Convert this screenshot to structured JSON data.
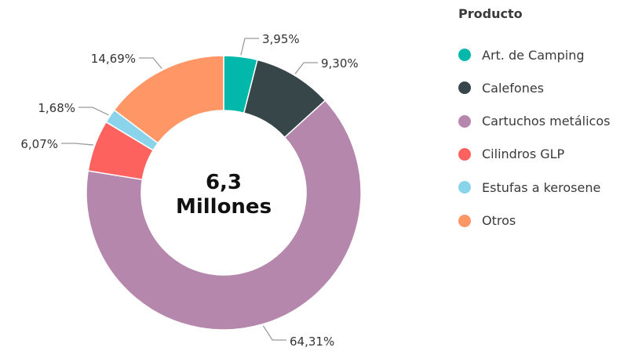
{
  "chart_data": {
    "type": "pie",
    "variant": "donut",
    "center_value": "6,3",
    "center_unit": "Millones",
    "legend_title": "Producto",
    "legend_placement": "right",
    "slices": [
      {
        "label": "Art. de Camping",
        "value": 3.95,
        "display": "3,95%",
        "color": "#01B8AA"
      },
      {
        "label": "Calefones",
        "value": 9.3,
        "display": "9,30%",
        "color": "#374649"
      },
      {
        "label": "Cartuchos metálicos",
        "value": 64.31,
        "display": "64,31%",
        "color": "#B687AC"
      },
      {
        "label": "Cilindros GLP",
        "value": 6.07,
        "display": "6,07%",
        "color": "#FD625E"
      },
      {
        "label": "Estufas a kerosene",
        "value": 1.68,
        "display": "1,68%",
        "color": "#8AD4EB"
      },
      {
        "label": "Otros",
        "value": 14.69,
        "display": "14,69%",
        "color": "#FE9666"
      }
    ]
  }
}
